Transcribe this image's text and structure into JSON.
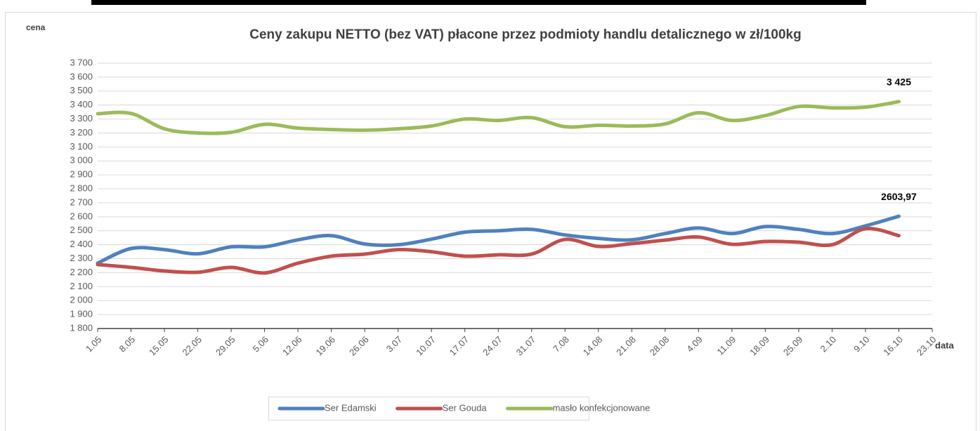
{
  "chart_data": {
    "type": "line",
    "title": "Ceny zakupu NETTO (bez VAT) płacone przez podmioty handlu detalicznego w zł/100kg",
    "y_label": "cena",
    "x_label": "data",
    "categories": [
      "1.05",
      "8.05",
      "15.05",
      "22.05",
      "29.05",
      "5.06",
      "12.06",
      "19.06",
      "26.06",
      "3.07",
      "10.07",
      "17.07",
      "24.07",
      "31.07",
      "7.08",
      "14.08",
      "21.08",
      "28.08",
      "4.09",
      "11.09",
      "18.09",
      "25.09",
      "2.10",
      "9.10",
      "16.10",
      "23.10"
    ],
    "series": [
      {
        "name": "Ser Edamski",
        "color": "#4f81bd",
        "values": [
          2268,
          2373,
          2365,
          2335,
          2385,
          2385,
          2435,
          2465,
          2405,
          2400,
          2440,
          2490,
          2500,
          2510,
          2470,
          2445,
          2435,
          2480,
          2520,
          2480,
          2530,
          2510,
          2480,
          2535,
          2603.97,
          null
        ],
        "value_labels": [
          null,
          null,
          null,
          null,
          null,
          null,
          null,
          null,
          null,
          null,
          null,
          null,
          null,
          null,
          null,
          null,
          null,
          null,
          null,
          null,
          null,
          null,
          null,
          null,
          "2603,97",
          null
        ]
      },
      {
        "name": "Ser Gouda",
        "color": "#c0504d",
        "values": [
          2258,
          2238,
          2212,
          2203,
          2238,
          2198,
          2268,
          2318,
          2333,
          2365,
          2350,
          2318,
          2328,
          2333,
          2438,
          2388,
          2408,
          2433,
          2455,
          2403,
          2423,
          2418,
          2400,
          2515,
          2465,
          null
        ]
      },
      {
        "name": "masło konfekcjonowane",
        "color": "#9bbb59",
        "values": [
          3338,
          3340,
          3230,
          3200,
          3205,
          3262,
          3235,
          3225,
          3220,
          3230,
          3250,
          3300,
          3290,
          3310,
          3245,
          3255,
          3250,
          3265,
          3345,
          3290,
          3325,
          3390,
          3380,
          3385,
          3425,
          null
        ],
        "value_labels": [
          null,
          null,
          null,
          null,
          null,
          null,
          null,
          null,
          null,
          null,
          null,
          null,
          null,
          null,
          null,
          null,
          null,
          null,
          null,
          null,
          null,
          null,
          null,
          null,
          "3 425",
          null
        ]
      }
    ],
    "ylim": [
      1800,
      3700
    ],
    "yticks": [
      {
        "value": 1800,
        "label": "1 800"
      },
      {
        "value": 1900,
        "label": "1 900"
      },
      {
        "value": 2000,
        "label": "2 000"
      },
      {
        "value": 2100,
        "label": "2 100"
      },
      {
        "value": 2200,
        "label": "2 200"
      },
      {
        "value": 2300,
        "label": "2 300"
      },
      {
        "value": 2400,
        "label": "2 400"
      },
      {
        "value": 2500,
        "label": "2 500"
      },
      {
        "value": 2600,
        "label": "2 600"
      },
      {
        "value": 2700,
        "label": "2 700"
      },
      {
        "value": 2800,
        "label": "2 800"
      },
      {
        "value": 2900,
        "label": "2 900"
      },
      {
        "value": 3000,
        "label": "3 000"
      },
      {
        "value": 3100,
        "label": "3 100"
      },
      {
        "value": 3200,
        "label": "3 200"
      },
      {
        "value": 3300,
        "label": "3 300"
      },
      {
        "value": 3400,
        "label": "3 400"
      },
      {
        "value": 3500,
        "label": "3 500"
      },
      {
        "value": 3600,
        "label": "3 600"
      },
      {
        "value": 3700,
        "label": "3 700"
      }
    ],
    "grid": true,
    "legend": "bottom"
  }
}
